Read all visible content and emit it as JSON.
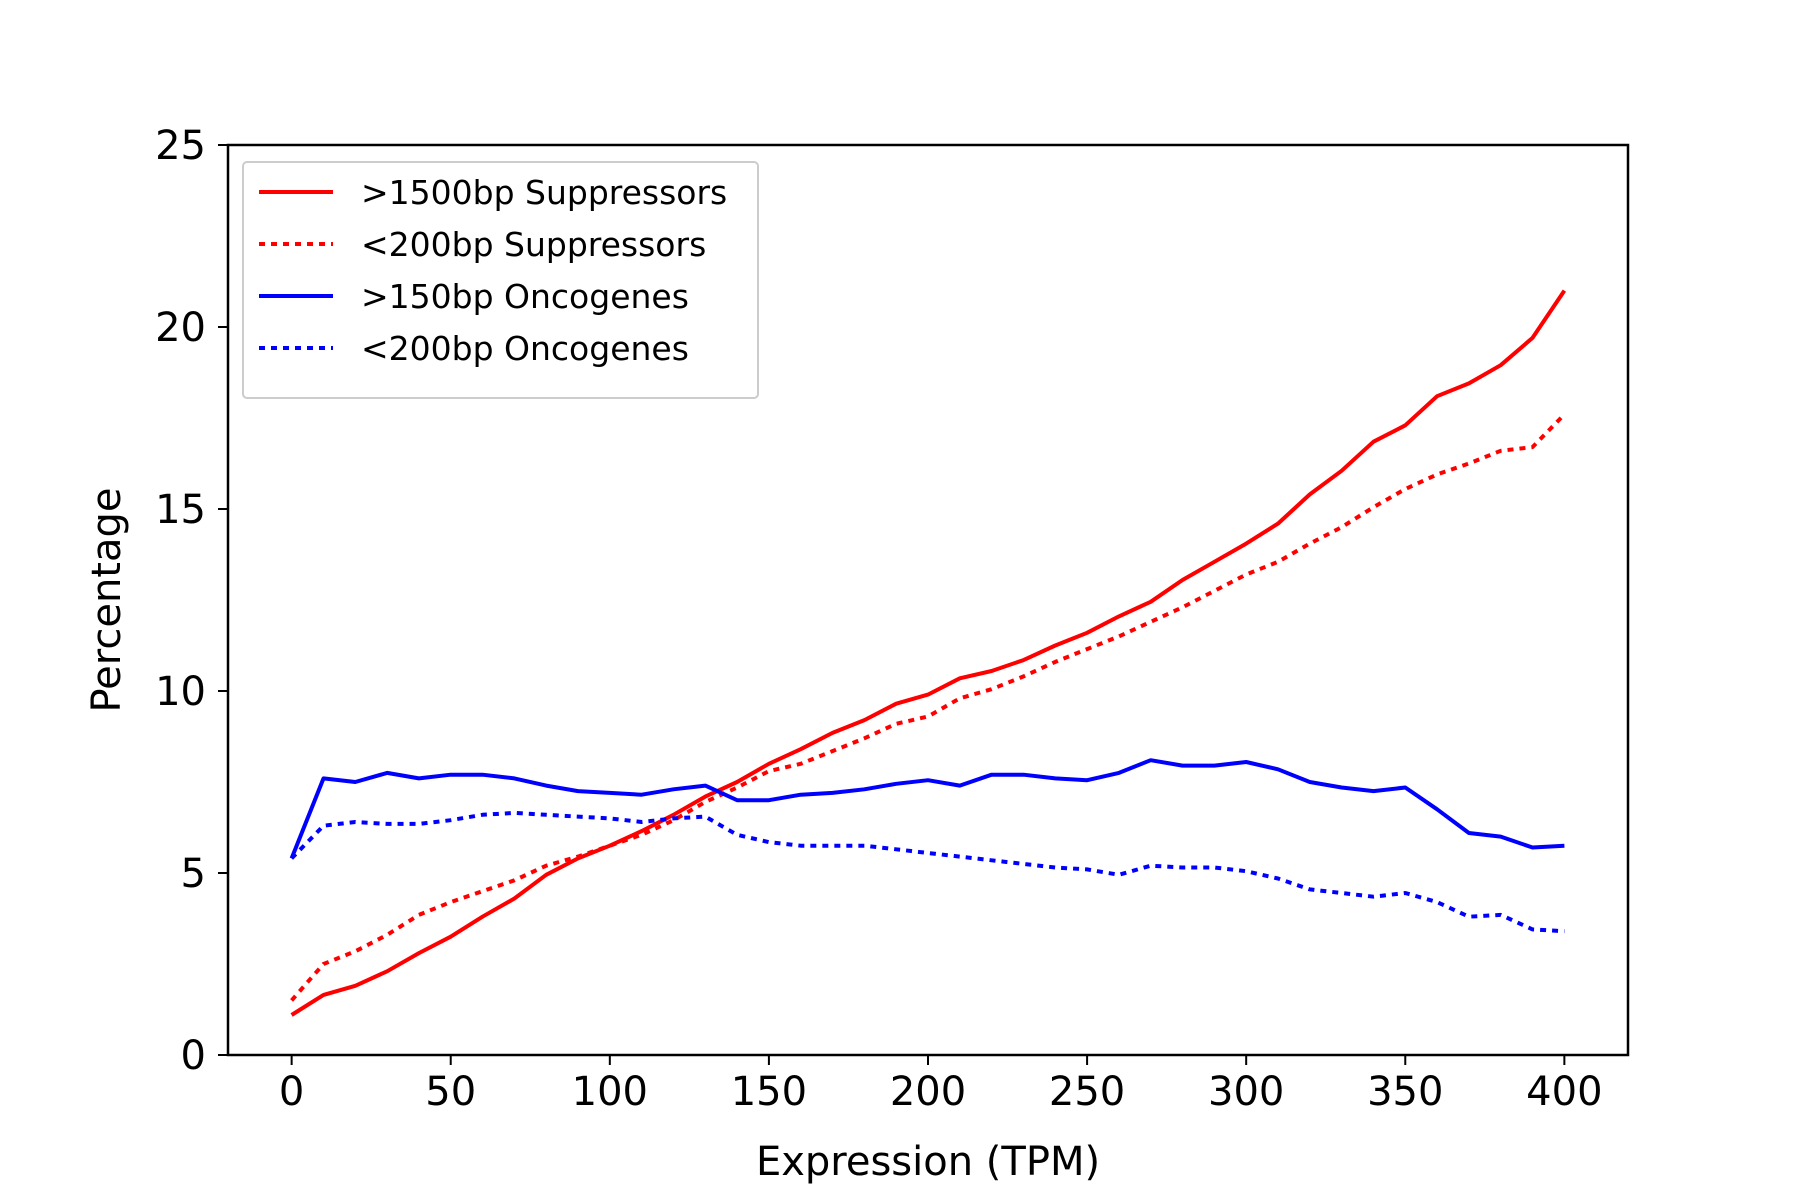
{
  "chart_data": {
    "type": "line",
    "title": "",
    "xlabel": "Expression (TPM)",
    "ylabel": "Percentage",
    "xlim": [
      -20,
      420
    ],
    "ylim": [
      0,
      25
    ],
    "xticks": [
      0,
      50,
      100,
      150,
      200,
      250,
      300,
      350,
      400
    ],
    "yticks": [
      0,
      5,
      10,
      15,
      20,
      25
    ],
    "grid": false,
    "legend_position": "top-left",
    "x": [
      0,
      10,
      20,
      30,
      40,
      50,
      60,
      70,
      80,
      90,
      100,
      110,
      120,
      130,
      140,
      150,
      160,
      170,
      180,
      190,
      200,
      210,
      220,
      230,
      240,
      250,
      260,
      270,
      280,
      290,
      300,
      310,
      320,
      330,
      340,
      350,
      360,
      370,
      380,
      390,
      400
    ],
    "series": [
      {
        "name": ">1500bp Suppressors",
        "color": "#ff0000",
        "dash": "solid",
        "values": [
          1.1,
          1.65,
          1.9,
          2.3,
          2.8,
          3.25,
          3.8,
          4.3,
          4.95,
          5.4,
          5.75,
          6.15,
          6.6,
          7.1,
          7.5,
          8.0,
          8.4,
          8.85,
          9.2,
          9.65,
          9.9,
          10.35,
          10.55,
          10.85,
          11.25,
          11.6,
          12.05,
          12.45,
          13.05,
          13.55,
          14.05,
          14.6,
          15.4,
          16.05,
          16.85,
          17.3,
          18.1,
          18.45,
          18.95,
          19.7,
          21.0
        ]
      },
      {
        "name": "<200bp Suppressors",
        "color": "#ff0000",
        "dash": "dotted",
        "values": [
          1.5,
          2.5,
          2.85,
          3.3,
          3.85,
          4.2,
          4.5,
          4.8,
          5.2,
          5.45,
          5.75,
          6.05,
          6.45,
          6.95,
          7.35,
          7.8,
          8.0,
          8.35,
          8.7,
          9.1,
          9.3,
          9.8,
          10.05,
          10.4,
          10.8,
          11.15,
          11.5,
          11.9,
          12.3,
          12.75,
          13.2,
          13.55,
          14.05,
          14.5,
          15.05,
          15.55,
          15.95,
          16.25,
          16.6,
          16.7,
          17.6
        ]
      },
      {
        "name": ">150bp Oncogenes",
        "color": "#0000ff",
        "dash": "solid",
        "values": [
          5.4,
          7.6,
          7.5,
          7.75,
          7.6,
          7.7,
          7.7,
          7.6,
          7.4,
          7.25,
          7.2,
          7.15,
          7.3,
          7.4,
          7.0,
          7.0,
          7.15,
          7.2,
          7.3,
          7.45,
          7.55,
          7.4,
          7.7,
          7.7,
          7.6,
          7.55,
          7.75,
          8.1,
          7.95,
          7.95,
          8.05,
          7.85,
          7.5,
          7.35,
          7.25,
          7.35,
          6.75,
          6.1,
          6.0,
          5.7,
          5.75
        ]
      },
      {
        "name": "<200bp Oncogenes",
        "color": "#0000ff",
        "dash": "dotted",
        "values": [
          5.4,
          6.3,
          6.4,
          6.35,
          6.35,
          6.45,
          6.6,
          6.65,
          6.6,
          6.55,
          6.5,
          6.4,
          6.5,
          6.55,
          6.05,
          5.85,
          5.75,
          5.75,
          5.75,
          5.65,
          5.55,
          5.45,
          5.35,
          5.25,
          5.15,
          5.1,
          4.95,
          5.2,
          5.15,
          5.15,
          5.05,
          4.85,
          4.55,
          4.45,
          4.35,
          4.45,
          4.2,
          3.8,
          3.85,
          3.45,
          3.4
        ]
      }
    ]
  }
}
